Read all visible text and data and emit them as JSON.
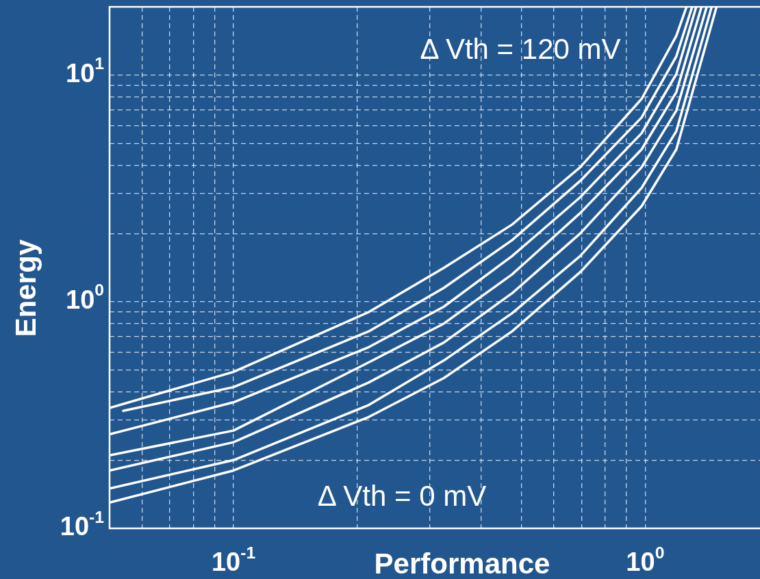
{
  "chart_data": {
    "type": "line",
    "xlabel": "Performance",
    "ylabel": "Energy",
    "log": "xy",
    "grid": true,
    "legend": false,
    "marker": "none",
    "line_style": "solid",
    "annotations": [
      "Δ Vth = 120 mV",
      "Δ Vth = 0 mV"
    ],
    "xlim": [
      0.05,
      1.9
    ],
    "ylim": [
      0.1,
      20
    ],
    "xticks": [
      {
        "value": 0.06,
        "label": null
      },
      {
        "value": 0.07,
        "label": null
      },
      {
        "value": 0.08,
        "label": null
      },
      {
        "value": 0.09,
        "label": null
      },
      {
        "value": 0.1,
        "label": "10$^{-1}$"
      },
      {
        "value": 0.2,
        "label": null
      },
      {
        "value": 0.3,
        "label": null
      },
      {
        "value": 0.4,
        "label": null
      },
      {
        "value": 0.5,
        "label": null
      },
      {
        "value": 0.6,
        "label": null
      },
      {
        "value": 0.7,
        "label": null
      },
      {
        "value": 0.8,
        "label": null
      },
      {
        "value": 0.9,
        "label": null
      },
      {
        "value": 1,
        "label": "10$^{0}$"
      }
    ],
    "yticks": [
      {
        "value": 0.1,
        "label": "10$^{-1}$"
      },
      {
        "value": 0.2,
        "label": null
      },
      {
        "value": 0.3,
        "label": null
      },
      {
        "value": 0.4,
        "label": null
      },
      {
        "value": 0.5,
        "label": null
      },
      {
        "value": 0.6,
        "label": null
      },
      {
        "value": 0.7,
        "label": null
      },
      {
        "value": 0.8,
        "label": null
      },
      {
        "value": 0.9,
        "label": null
      },
      {
        "value": 1,
        "label": "10$^{0}$"
      },
      {
        "value": 2,
        "label": null
      },
      {
        "value": 3,
        "label": null
      },
      {
        "value": 4,
        "label": null
      },
      {
        "value": 5,
        "label": null
      },
      {
        "value": 6,
        "label": null
      },
      {
        "value": 7,
        "label": null
      },
      {
        "value": 8,
        "label": null
      },
      {
        "value": 9,
        "label": null
      },
      {
        "value": 10,
        "label": "10$^{1}$"
      }
    ],
    "series": [
      {
        "color": "#ffffff",
        "x": [
          0.05,
          0.1,
          0.213,
          0.324,
          0.475,
          0.695,
          0.98,
          1.19,
          1.26
        ],
        "values": [
          0.34,
          0.49,
          0.9,
          1.41,
          2.19,
          3.92,
          7.85,
          14.9,
          20
        ]
      },
      {
        "color": "#ffffff",
        "x": [
          0.054,
          0.1,
          0.213,
          0.324,
          0.475,
          0.695,
          0.98,
          1.19,
          1.3
        ],
        "values": [
          0.33,
          0.42,
          0.74,
          1.15,
          1.87,
          3.41,
          6.5,
          12.1,
          20
        ]
      },
      {
        "color": "#ffffff",
        "x": [
          0.05,
          0.1,
          0.213,
          0.324,
          0.475,
          0.695,
          0.98,
          1.19,
          1.33
        ],
        "values": [
          0.26,
          0.36,
          0.63,
          0.95,
          1.59,
          2.89,
          5.54,
          10.1,
          20
        ]
      },
      {
        "color": "#ffffff",
        "x": [
          0.05,
          0.1,
          0.213,
          0.324,
          0.475,
          0.695,
          0.98,
          1.19,
          1.37
        ],
        "values": [
          0.21,
          0.27,
          0.54,
          0.8,
          1.32,
          2.46,
          4.7,
          8.41,
          20
        ]
      },
      {
        "color": "#ffffff",
        "x": [
          0.05,
          0.1,
          0.213,
          0.324,
          0.475,
          0.695,
          0.98,
          1.19,
          1.41
        ],
        "values": [
          0.18,
          0.24,
          0.44,
          0.66,
          1.09,
          2.0,
          3.92,
          6.97,
          20
        ]
      },
      {
        "color": "#ffffff",
        "x": [
          0.05,
          0.1,
          0.213,
          0.324,
          0.475,
          0.695,
          0.98,
          1.19,
          1.45
        ],
        "values": [
          0.15,
          0.2,
          0.35,
          0.55,
          0.89,
          1.59,
          3.18,
          5.66,
          20
        ]
      },
      {
        "color": "#ffffff",
        "x": [
          0.05,
          0.1,
          0.213,
          0.324,
          0.475,
          0.695,
          0.98,
          1.19,
          1.49
        ],
        "values": [
          0.13,
          0.18,
          0.31,
          0.46,
          0.74,
          1.35,
          2.64,
          4.7,
          20
        ]
      }
    ]
  }
}
